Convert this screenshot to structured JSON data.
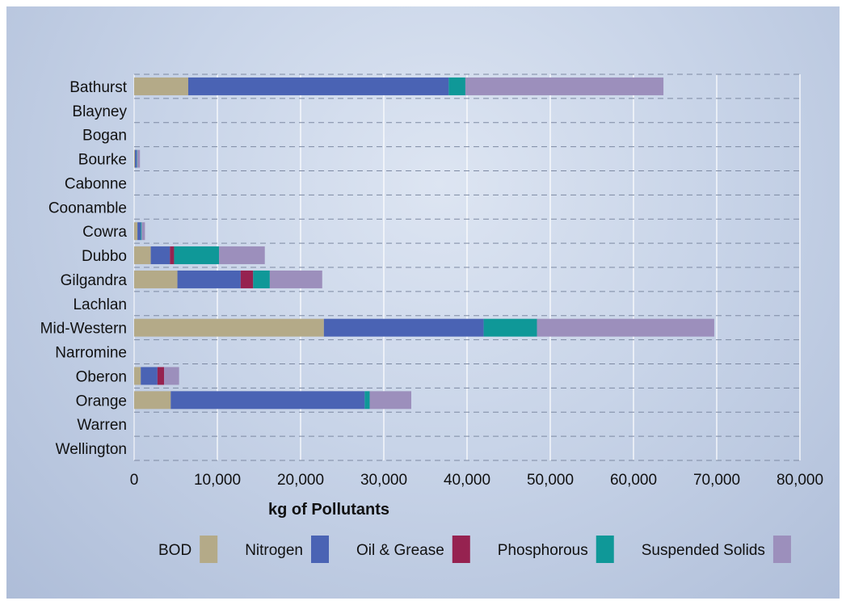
{
  "chart_data": {
    "type": "bar",
    "orientation": "horizontal",
    "stacked": true,
    "title": "",
    "xlabel": "kg of Pollutants",
    "ylabel": "",
    "xlim": [
      0,
      80000
    ],
    "x_ticks": [
      0,
      10000,
      20000,
      30000,
      40000,
      50000,
      60000,
      70000,
      80000
    ],
    "x_tick_labels": [
      "0",
      "10,000",
      "20,000",
      "30,000",
      "40,000",
      "50,000",
      "60,000",
      "70,000",
      "80,000"
    ],
    "grid": true,
    "legend_position": "bottom",
    "categories": [
      "Bathurst",
      "Blayney",
      "Bogan",
      "Bourke",
      "Cabonne",
      "Coonamble",
      "Cowra",
      "Dubbo",
      "Gilgandra",
      "Lachlan",
      "Mid-Western",
      "Narromine",
      "Oberon",
      "Orange",
      "Warren",
      "Wellington"
    ],
    "series": [
      {
        "name": "BOD",
        "color": "#b4aa88",
        "values": [
          6500,
          0,
          0,
          100,
          0,
          0,
          400,
          2000,
          5200,
          0,
          22800,
          0,
          800,
          4400,
          0,
          0
        ]
      },
      {
        "name": "Nitrogen",
        "color": "#4a63b4",
        "values": [
          31300,
          0,
          0,
          200,
          0,
          0,
          400,
          2300,
          7600,
          0,
          19200,
          0,
          2000,
          23300,
          0,
          0
        ]
      },
      {
        "name": "Oil & Grease",
        "color": "#962250",
        "values": [
          0,
          0,
          0,
          0,
          0,
          0,
          0,
          500,
          1500,
          0,
          0,
          0,
          800,
          0,
          0,
          0
        ]
      },
      {
        "name": "Phosphorous",
        "color": "#0f9898",
        "values": [
          2000,
          0,
          0,
          50,
          0,
          0,
          100,
          5400,
          2000,
          0,
          6400,
          0,
          0,
          600,
          0,
          0
        ]
      },
      {
        "name": "Suspended Solids",
        "color": "#9c8fbc",
        "values": [
          23800,
          0,
          0,
          350,
          0,
          0,
          400,
          5500,
          6300,
          0,
          21300,
          0,
          1800,
          5000,
          0,
          0
        ]
      }
    ]
  }
}
